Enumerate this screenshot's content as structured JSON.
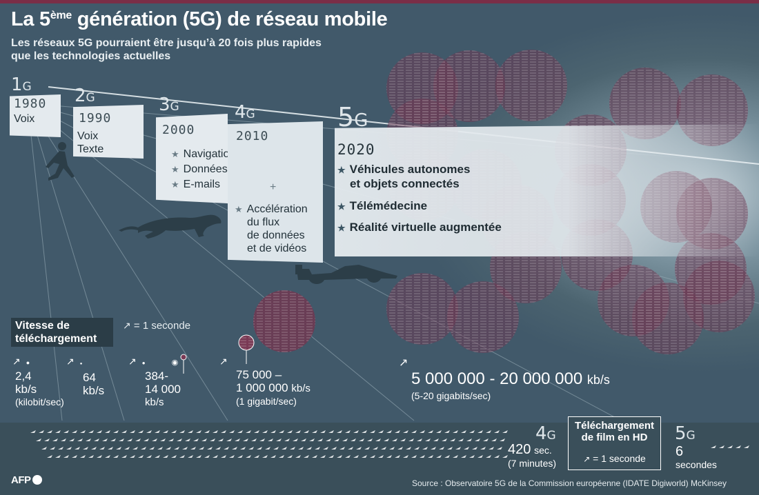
{
  "header": {
    "title_main": "La 5",
    "title_sup": "ème",
    "title_rest": " génération (5G) de réseau mobile",
    "subtitle_line1": "Les réseaux 5G pourraient être jusqu’à 20 fois plus rapides",
    "subtitle_line2": "que les technologies actuelles"
  },
  "generations": [
    {
      "num": "1",
      "g": "G",
      "year": "1980",
      "features": [
        "Voix"
      ]
    },
    {
      "num": "2",
      "g": "G",
      "year": "1990",
      "features": [
        "Voix",
        "Texte"
      ]
    },
    {
      "num": "3",
      "g": "G",
      "year": "2000",
      "features": [
        "Navigation Internet",
        "Données mobiles",
        "E-mails"
      ]
    },
    {
      "num": "4",
      "g": "G",
      "year": "2010",
      "plus": "+",
      "features": [
        "Accélération",
        "du flux",
        "de données",
        "et de vidéos"
      ]
    },
    {
      "num": "5",
      "g": "G",
      "year": "2020",
      "features": [
        "Véhicules autonomes",
        "et objets connectés",
        "Télémédecine",
        "Réalité virtuelle augmentée"
      ]
    }
  ],
  "speed_legend": {
    "title_line1": "Vitesse  de",
    "title_line2": "téléchargement",
    "unit_note": "= 1 seconde"
  },
  "speeds": [
    {
      "value_line1": "2,4",
      "value_line2": "kb/s",
      "note": "(kilobit/sec)"
    },
    {
      "value_line1": "64",
      "value_line2": "kb/s"
    },
    {
      "value_line1": "384-",
      "value_line2": "14 000",
      "value_line3": "kb/s"
    },
    {
      "value_line1": "75 000 –",
      "value_line2": "1 000 000",
      "unit": "kb/s",
      "note": "(1 gigabit/sec)"
    },
    {
      "value": "5 000 000 - 20 000 000",
      "unit": "kb/s",
      "note": "(5-20 gigabits/sec)"
    }
  ],
  "hd_download": {
    "title_line1": "Téléchargement",
    "title_line2": "de film en HD",
    "unit_note": "= 1 seconde",
    "four_g": {
      "num": "4",
      "g": "G",
      "value": "420",
      "unit": "sec.",
      "note": "(7 minutes)"
    },
    "five_g": {
      "num": "5",
      "g": "G",
      "value": "6",
      "unit": "secondes"
    }
  },
  "footer": {
    "logo": "AFP",
    "source": "Source : Observatoire 5G de la Commission européenne (IDATE Digiworld) McKinsey"
  },
  "colors": {
    "background": "#41596a",
    "panel": "#e4eaee",
    "bubble": "#7a3a55",
    "accent_bar": "#7a2e47",
    "legend_box": "#2b3d47"
  }
}
